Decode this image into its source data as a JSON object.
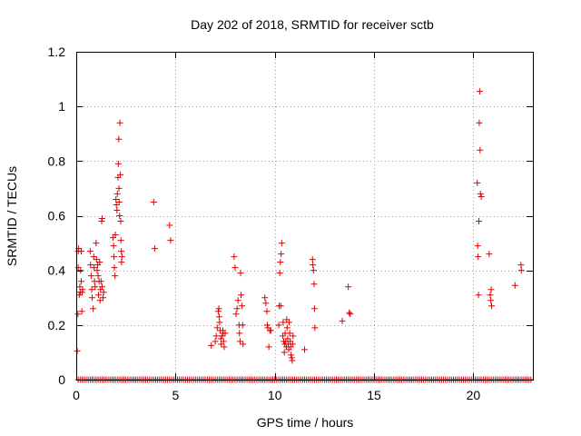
{
  "chart_data": {
    "type": "scatter",
    "title": "Day 202 of 2018, SRMTID for receiver sctb",
    "xlabel": "GPS time / hours",
    "ylabel": "SRMTID / TECUs",
    "xlim": [
      0,
      23
    ],
    "ylim": [
      0,
      1.2
    ],
    "xticks": [
      0,
      5,
      10,
      15,
      20
    ],
    "xtick_labels": [
      "0",
      "5",
      "10",
      "15",
      "20"
    ],
    "yticks": [
      0,
      0.2,
      0.4,
      0.6,
      0.8,
      1,
      1.2
    ],
    "ytick_labels": [
      "0",
      "0.2",
      "0.4",
      "0.6",
      "0.8",
      "1",
      "1.2"
    ],
    "grid": true,
    "marker": "+",
    "colors": {
      "marker": "#e00000",
      "frame": "#000000",
      "grid": "#a0a0a0"
    },
    "zero_baseline": {
      "value": 0,
      "x_start": 0.1,
      "x_end": 22.9,
      "step": 0.1
    },
    "series": [
      {
        "name": "sctb",
        "points": [
          [
            0.05,
            0.105
          ],
          [
            0.08,
            0.24
          ],
          [
            0.1,
            0.47
          ],
          [
            0.12,
            0.48
          ],
          [
            0.15,
            0.31
          ],
          [
            0.18,
            0.34
          ],
          [
            0.2,
            0.32
          ],
          [
            0.22,
            0.4
          ],
          [
            0.25,
            0.36
          ],
          [
            0.28,
            0.25
          ],
          [
            0.3,
            0.32
          ],
          [
            0.32,
            0.33
          ],
          [
            0.25,
            0.47
          ],
          [
            0.1,
            0.41
          ],
          [
            0.7,
            0.47
          ],
          [
            0.72,
            0.42
          ],
          [
            0.75,
            0.38
          ],
          [
            0.78,
            0.33
          ],
          [
            0.8,
            0.3
          ],
          [
            0.85,
            0.26
          ],
          [
            0.88,
            0.45
          ],
          [
            0.9,
            0.41
          ],
          [
            0.92,
            0.36
          ],
          [
            0.95,
            0.34
          ],
          [
            1.0,
            0.5
          ],
          [
            1.02,
            0.44
          ],
          [
            1.05,
            0.4
          ],
          [
            1.08,
            0.42
          ],
          [
            1.1,
            0.38
          ],
          [
            1.12,
            0.31
          ],
          [
            1.15,
            0.36
          ],
          [
            1.18,
            0.43
          ],
          [
            1.2,
            0.29
          ],
          [
            1.22,
            0.33
          ],
          [
            1.25,
            0.36
          ],
          [
            1.28,
            0.58
          ],
          [
            1.3,
            0.59
          ],
          [
            1.3,
            0.34
          ],
          [
            1.35,
            0.3
          ],
          [
            1.38,
            0.32
          ],
          [
            1.85,
            0.52
          ],
          [
            1.88,
            0.49
          ],
          [
            1.9,
            0.45
          ],
          [
            1.92,
            0.41
          ],
          [
            1.95,
            0.38
          ],
          [
            1.97,
            0.53
          ],
          [
            2.0,
            0.66
          ],
          [
            2.02,
            0.64
          ],
          [
            2.05,
            0.62
          ],
          [
            2.07,
            0.68
          ],
          [
            2.1,
            0.74
          ],
          [
            2.12,
            0.79
          ],
          [
            2.14,
            0.88
          ],
          [
            2.15,
            0.7
          ],
          [
            2.16,
            0.65
          ],
          [
            2.18,
            0.6
          ],
          [
            2.2,
            0.94
          ],
          [
            2.22,
            0.75
          ],
          [
            2.24,
            0.58
          ],
          [
            2.25,
            0.51
          ],
          [
            2.27,
            0.47
          ],
          [
            2.28,
            0.43
          ],
          [
            2.3,
            0.45
          ],
          [
            3.9,
            0.65
          ],
          [
            3.95,
            0.48
          ],
          [
            4.7,
            0.565
          ],
          [
            4.75,
            0.51
          ],
          [
            6.8,
            0.125
          ],
          [
            7.0,
            0.14
          ],
          [
            7.05,
            0.16
          ],
          [
            7.1,
            0.19
          ],
          [
            7.15,
            0.25
          ],
          [
            7.18,
            0.26
          ],
          [
            7.2,
            0.23
          ],
          [
            7.22,
            0.21
          ],
          [
            7.25,
            0.18
          ],
          [
            7.28,
            0.15
          ],
          [
            7.3,
            0.13
          ],
          [
            7.35,
            0.16
          ],
          [
            7.38,
            0.18
          ],
          [
            7.4,
            0.17
          ],
          [
            7.42,
            0.14
          ],
          [
            7.45,
            0.12
          ],
          [
            7.5,
            0.17
          ],
          [
            7.95,
            0.45
          ],
          [
            8.0,
            0.41
          ],
          [
            8.05,
            0.24
          ],
          [
            8.1,
            0.26
          ],
          [
            8.15,
            0.29
          ],
          [
            8.2,
            0.2
          ],
          [
            8.22,
            0.17
          ],
          [
            8.25,
            0.14
          ],
          [
            8.28,
            0.39
          ],
          [
            8.3,
            0.31
          ],
          [
            8.35,
            0.27
          ],
          [
            8.38,
            0.2
          ],
          [
            8.4,
            0.13
          ],
          [
            9.5,
            0.3
          ],
          [
            9.55,
            0.28
          ],
          [
            9.6,
            0.25
          ],
          [
            9.62,
            0.2
          ],
          [
            9.65,
            0.19
          ],
          [
            9.7,
            0.12
          ],
          [
            9.75,
            0.18
          ],
          [
            9.8,
            0.18
          ],
          [
            10.2,
            0.2
          ],
          [
            10.22,
            0.27
          ],
          [
            10.25,
            0.39
          ],
          [
            10.28,
            0.43
          ],
          [
            10.3,
            0.27
          ],
          [
            10.32,
            0.46
          ],
          [
            10.35,
            0.5
          ],
          [
            10.4,
            0.16
          ],
          [
            10.42,
            0.21
          ],
          [
            10.45,
            0.14
          ],
          [
            10.48,
            0.1
          ],
          [
            10.5,
            0.13
          ],
          [
            10.52,
            0.17
          ],
          [
            10.55,
            0.14
          ],
          [
            10.58,
            0.12
          ],
          [
            10.6,
            0.22
          ],
          [
            10.62,
            0.19
          ],
          [
            10.65,
            0.15
          ],
          [
            10.68,
            0.13
          ],
          [
            10.7,
            0.11
          ],
          [
            10.72,
            0.21
          ],
          [
            10.75,
            0.17
          ],
          [
            10.78,
            0.14
          ],
          [
            10.8,
            0.12
          ],
          [
            10.82,
            0.09
          ],
          [
            10.85,
            0.08
          ],
          [
            10.88,
            0.07
          ],
          [
            10.9,
            0.13
          ],
          [
            10.92,
            0.16
          ],
          [
            11.5,
            0.11
          ],
          [
            11.9,
            0.44
          ],
          [
            11.92,
            0.42
          ],
          [
            11.95,
            0.4
          ],
          [
            11.98,
            0.35
          ],
          [
            12.0,
            0.26
          ],
          [
            12.02,
            0.19
          ],
          [
            13.4,
            0.215
          ],
          [
            13.7,
            0.34
          ],
          [
            13.75,
            0.245
          ],
          [
            13.8,
            0.24
          ],
          [
            20.2,
            0.72
          ],
          [
            20.22,
            0.49
          ],
          [
            20.24,
            0.45
          ],
          [
            20.26,
            0.31
          ],
          [
            20.28,
            0.58
          ],
          [
            20.3,
            0.94
          ],
          [
            20.32,
            1.055
          ],
          [
            20.34,
            0.84
          ],
          [
            20.36,
            0.68
          ],
          [
            20.4,
            0.67
          ],
          [
            20.8,
            0.46
          ],
          [
            20.85,
            0.31
          ],
          [
            20.88,
            0.29
          ],
          [
            20.9,
            0.33
          ],
          [
            20.92,
            0.27
          ],
          [
            22.1,
            0.345
          ],
          [
            22.4,
            0.42
          ],
          [
            22.42,
            0.4
          ]
        ]
      }
    ]
  }
}
